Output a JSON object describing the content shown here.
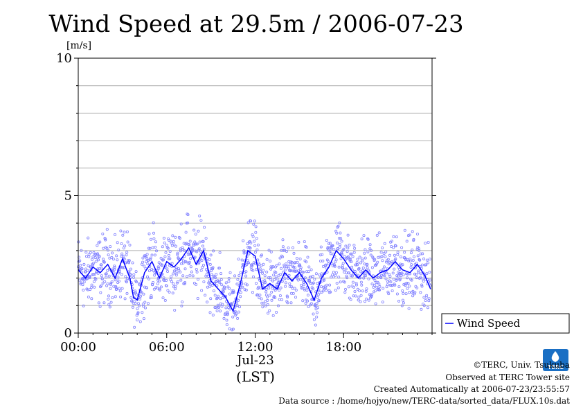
{
  "chart_data": {
    "type": "line",
    "title": "Wind Speed at 29.5m / 2006-07-23",
    "ylabel": "[m/s]",
    "xlabel": "(LST)",
    "date_label": "Jul-23",
    "ylim": [
      0,
      10
    ],
    "xlim": [
      0,
      24
    ],
    "y_ticks": [
      "0",
      "5",
      "10"
    ],
    "x_ticks": [
      "00:00",
      "06:00",
      "12:00",
      "18:00"
    ],
    "grid": true,
    "legend_position": "right",
    "series": [
      {
        "name": "Wind Speed",
        "color": "#0000ff",
        "scatter_color": "#8080ff",
        "x": [
          0.0,
          0.5,
          1.0,
          1.5,
          2.0,
          2.5,
          3.0,
          3.5,
          3.75,
          4.0,
          4.5,
          5.0,
          5.5,
          6.0,
          6.5,
          7.0,
          7.5,
          8.0,
          8.5,
          9.0,
          9.5,
          10.0,
          10.5,
          11.0,
          11.5,
          12.0,
          12.5,
          13.0,
          13.5,
          14.0,
          14.5,
          15.0,
          15.5,
          16.0,
          16.5,
          17.0,
          17.5,
          18.0,
          18.5,
          19.0,
          19.5,
          20.0,
          20.5,
          21.0,
          21.5,
          22.0,
          22.5,
          23.0,
          23.5,
          23.9
        ],
        "y": [
          2.3,
          2.0,
          2.4,
          2.2,
          2.5,
          2.0,
          2.7,
          2.0,
          1.3,
          1.2,
          2.2,
          2.6,
          2.0,
          2.6,
          2.4,
          2.7,
          3.1,
          2.5,
          3.0,
          1.9,
          1.6,
          1.3,
          0.8,
          1.8,
          3.0,
          2.8,
          1.6,
          1.8,
          1.6,
          2.2,
          1.9,
          2.2,
          1.8,
          1.2,
          2.0,
          2.4,
          3.0,
          2.7,
          2.3,
          2.0,
          2.3,
          2.0,
          2.2,
          2.3,
          2.6,
          2.3,
          2.2,
          2.5,
          2.1,
          1.6
        ]
      }
    ]
  },
  "credits": {
    "copyright": "©TERC, Univ. Tsukuba",
    "observed": "Observed at TERC Tower site",
    "created": "Created Automatically at 2006-07-23/23:55:57",
    "source": "Data source : /home/hojyo/new/TERC-data/sorted_data/FLUX.10s.dat"
  },
  "logo": {
    "text": "TERC",
    "color": "#1a6fc4"
  }
}
